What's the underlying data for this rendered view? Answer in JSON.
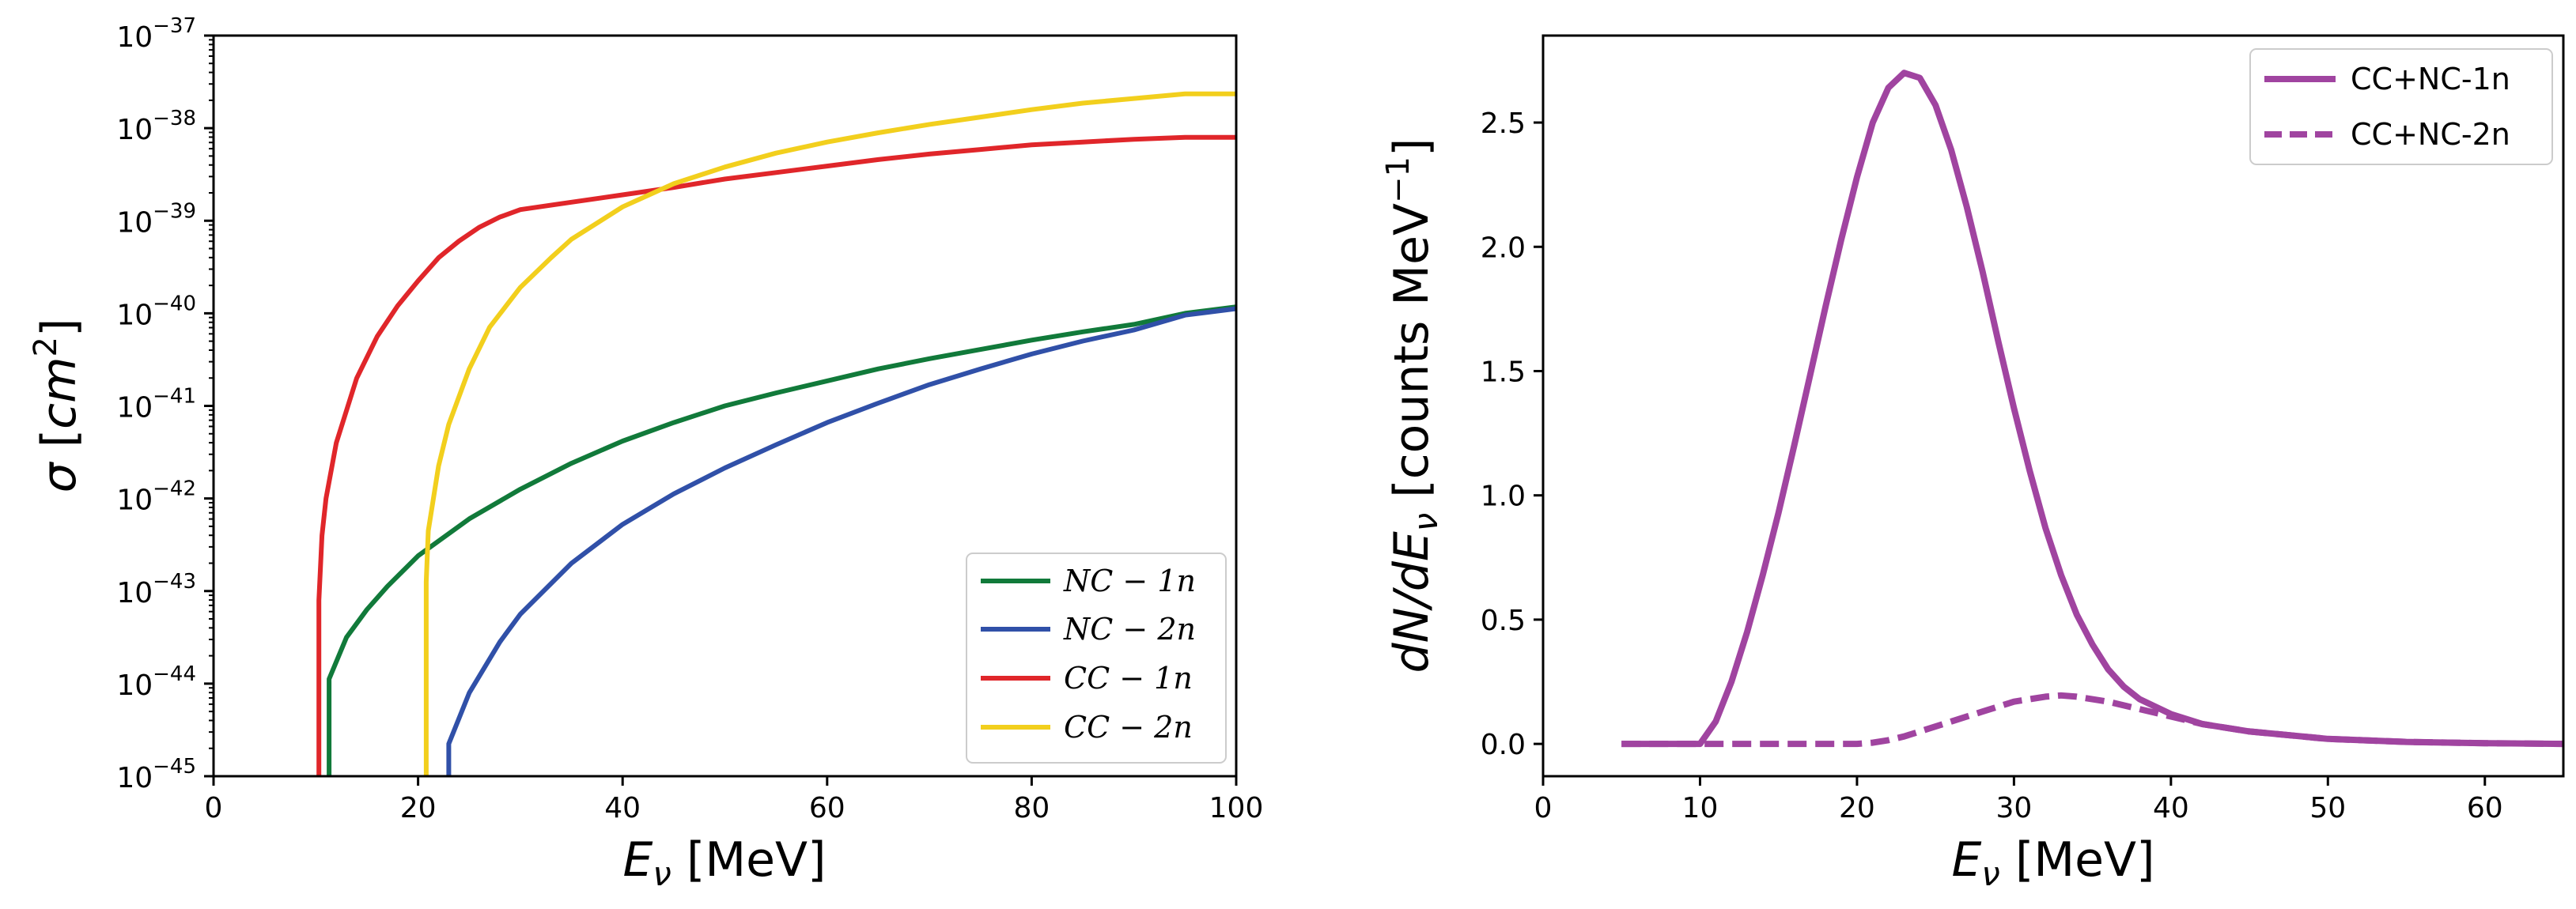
{
  "chart_data": [
    {
      "type": "line",
      "title": "",
      "xlabel_symbol": "E",
      "xlabel_sub": "ν",
      "xlabel_unit": " [MeV]",
      "ylabel_symbol": "σ",
      "ylabel_unit_open": " [",
      "ylabel_unit": "cm",
      "ylabel_exp": "2",
      "ylabel_unit_close": "]",
      "yscale": "log",
      "xlim": [
        0,
        100
      ],
      "ylim_exp": [
        -45,
        -37
      ],
      "xticks": [
        "0",
        "20",
        "40",
        "60",
        "80",
        "100"
      ],
      "ytick_exponents": [
        "−45",
        "−44",
        "−43",
        "−42",
        "−41",
        "−40",
        "−39",
        "−38",
        "−37"
      ],
      "ytick_base": "10",
      "legend_position": "lower-right",
      "series": [
        {
          "name": "NC − 1n",
          "color": "#117a3a",
          "points": [
            [
              11.3,
              -45
            ],
            [
              11.3,
              -43.95
            ],
            [
              13,
              -43.5
            ],
            [
              15,
              -43.2
            ],
            [
              17,
              -42.95
            ],
            [
              20,
              -42.62
            ],
            [
              25,
              -42.22
            ],
            [
              30,
              -41.9
            ],
            [
              35,
              -41.62
            ],
            [
              40,
              -41.38
            ],
            [
              45,
              -41.18
            ],
            [
              50,
              -41.0
            ],
            [
              55,
              -40.86
            ],
            [
              60,
              -40.73
            ],
            [
              65,
              -40.6
            ],
            [
              70,
              -40.49
            ],
            [
              75,
              -40.39
            ],
            [
              80,
              -40.29
            ],
            [
              85,
              -40.2
            ],
            [
              90,
              -40.12
            ],
            [
              95,
              -40.0
            ],
            [
              100,
              -39.93
            ]
          ]
        },
        {
          "name": "NC − 2n",
          "color": "#3050a8",
          "points": [
            [
              23,
              -45
            ],
            [
              23,
              -44.65
            ],
            [
              25,
              -44.1
            ],
            [
              28,
              -43.55
            ],
            [
              30,
              -43.25
            ],
            [
              35,
              -42.7
            ],
            [
              40,
              -42.28
            ],
            [
              45,
              -41.95
            ],
            [
              50,
              -41.67
            ],
            [
              55,
              -41.42
            ],
            [
              60,
              -41.18
            ],
            [
              65,
              -40.97
            ],
            [
              70,
              -40.77
            ],
            [
              75,
              -40.6
            ],
            [
              80,
              -40.44
            ],
            [
              85,
              -40.3
            ],
            [
              90,
              -40.18
            ],
            [
              95,
              -40.02
            ],
            [
              100,
              -39.95
            ]
          ]
        },
        {
          "name": "CC − 1n",
          "color": "#e0262a",
          "points": [
            [
              10.3,
              -45
            ],
            [
              10.3,
              -43.1
            ],
            [
              10.6,
              -42.4
            ],
            [
              11,
              -42.0
            ],
            [
              12,
              -41.4
            ],
            [
              14,
              -40.7
            ],
            [
              16,
              -40.25
            ],
            [
              18,
              -39.92
            ],
            [
              20,
              -39.65
            ],
            [
              22,
              -39.4
            ],
            [
              24,
              -39.22
            ],
            [
              26,
              -39.07
            ],
            [
              28,
              -38.96
            ],
            [
              30,
              -38.88
            ],
            [
              35,
              -38.8
            ],
            [
              40,
              -38.72
            ],
            [
              45,
              -38.64
            ],
            [
              50,
              -38.55
            ],
            [
              55,
              -38.48
            ],
            [
              60,
              -38.41
            ],
            [
              65,
              -38.34
            ],
            [
              70,
              -38.28
            ],
            [
              75,
              -38.23
            ],
            [
              80,
              -38.18
            ],
            [
              85,
              -38.15
            ],
            [
              90,
              -38.12
            ],
            [
              95,
              -38.1
            ],
            [
              100,
              -38.1
            ]
          ]
        },
        {
          "name": "CC − 2n",
          "color": "#f2cf1d",
          "points": [
            [
              20.8,
              -45
            ],
            [
              20.8,
              -42.9
            ],
            [
              21,
              -42.35
            ],
            [
              22,
              -41.65
            ],
            [
              23,
              -41.2
            ],
            [
              25,
              -40.6
            ],
            [
              27,
              -40.15
            ],
            [
              30,
              -39.72
            ],
            [
              33,
              -39.4
            ],
            [
              35,
              -39.2
            ],
            [
              40,
              -38.85
            ],
            [
              45,
              -38.6
            ],
            [
              50,
              -38.42
            ],
            [
              55,
              -38.27
            ],
            [
              60,
              -38.15
            ],
            [
              65,
              -38.05
            ],
            [
              70,
              -37.96
            ],
            [
              75,
              -37.88
            ],
            [
              80,
              -37.8
            ],
            [
              85,
              -37.73
            ],
            [
              90,
              -37.68
            ],
            [
              95,
              -37.63
            ],
            [
              100,
              -37.63
            ]
          ]
        }
      ]
    },
    {
      "type": "line",
      "title": "",
      "xlabel_symbol": "E",
      "xlabel_sub": "ν",
      "xlabel_unit": " [MeV]",
      "ylabel_main": "dN/dE",
      "ylabel_sub": "ν",
      "ylabel_unit_open": " [counts MeV",
      "ylabel_exp": "−1",
      "ylabel_unit_close": "]",
      "xlim": [
        0,
        65
      ],
      "ylim": [
        -0.13,
        2.85
      ],
      "xticks": [
        "0",
        "10",
        "20",
        "30",
        "40",
        "50",
        "60"
      ],
      "yticks": [
        "0.0",
        "0.5",
        "1.0",
        "1.5",
        "2.0",
        "2.5"
      ],
      "legend_position": "top-right",
      "series": [
        {
          "name": "CC+NC-1n",
          "color": "#a044a0",
          "style": "solid",
          "points": [
            [
              5,
              0
            ],
            [
              10,
              0
            ],
            [
              11,
              0.09
            ],
            [
              12,
              0.25
            ],
            [
              13,
              0.45
            ],
            [
              14,
              0.68
            ],
            [
              15,
              0.93
            ],
            [
              16,
              1.2
            ],
            [
              17,
              1.48
            ],
            [
              18,
              1.76
            ],
            [
              19,
              2.03
            ],
            [
              20,
              2.28
            ],
            [
              21,
              2.5
            ],
            [
              22,
              2.64
            ],
            [
              23,
              2.7
            ],
            [
              24,
              2.68
            ],
            [
              25,
              2.57
            ],
            [
              26,
              2.39
            ],
            [
              27,
              2.16
            ],
            [
              28,
              1.9
            ],
            [
              29,
              1.62
            ],
            [
              30,
              1.35
            ],
            [
              31,
              1.1
            ],
            [
              32,
              0.87
            ],
            [
              33,
              0.68
            ],
            [
              34,
              0.52
            ],
            [
              35,
              0.4
            ],
            [
              36,
              0.3
            ],
            [
              37,
              0.23
            ],
            [
              38,
              0.18
            ],
            [
              40,
              0.12
            ],
            [
              42,
              0.08
            ],
            [
              45,
              0.05
            ],
            [
              50,
              0.02
            ],
            [
              55,
              0.008
            ],
            [
              60,
              0.003
            ],
            [
              65,
              0
            ]
          ]
        },
        {
          "name": "CC+NC-2n",
          "color": "#a044a0",
          "style": "dashed",
          "points": [
            [
              5,
              0
            ],
            [
              20,
              0
            ],
            [
              21,
              0.005
            ],
            [
              22,
              0.015
            ],
            [
              23,
              0.03
            ],
            [
              24,
              0.05
            ],
            [
              26,
              0.09
            ],
            [
              28,
              0.13
            ],
            [
              30,
              0.17
            ],
            [
              32,
              0.19
            ],
            [
              33,
              0.195
            ],
            [
              34,
              0.19
            ],
            [
              36,
              0.17
            ],
            [
              38,
              0.14
            ],
            [
              40,
              0.11
            ],
            [
              42,
              0.08
            ],
            [
              45,
              0.05
            ],
            [
              50,
              0.02
            ],
            [
              55,
              0.008
            ],
            [
              60,
              0.003
            ],
            [
              65,
              0
            ]
          ]
        }
      ]
    }
  ]
}
